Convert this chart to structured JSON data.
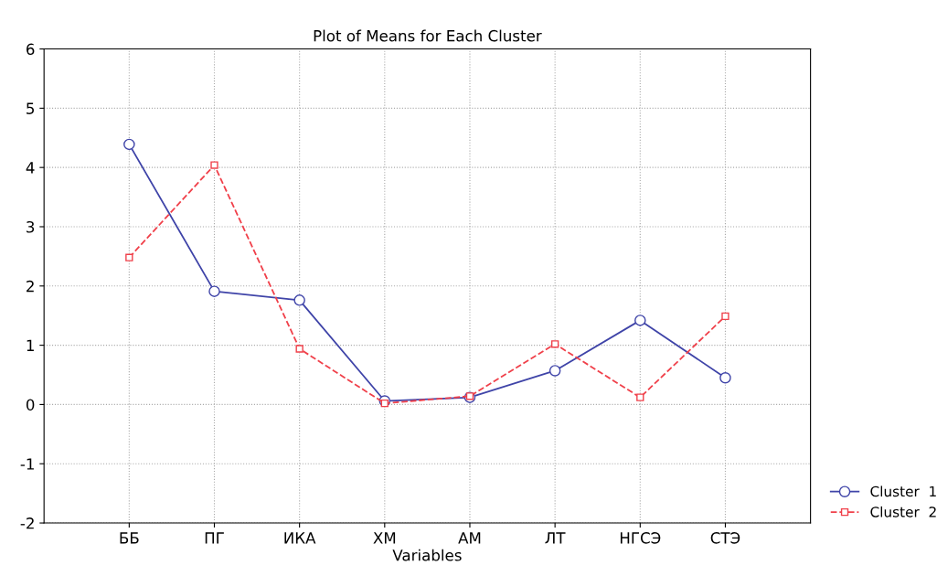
{
  "chart_data": {
    "type": "line",
    "title": "Plot of Means for Each Cluster",
    "xlabel": "Variables",
    "categories": [
      "ББ",
      "ПГ",
      "ИКА",
      "ХМ",
      "АМ",
      "ЛТ",
      "НГСЭ",
      "СТЭ"
    ],
    "series": [
      {
        "name": "Cluster  1",
        "color": "#3f44a8",
        "marker": "circle",
        "line_style": "solid",
        "values": [
          4.39,
          1.91,
          1.76,
          0.06,
          0.12,
          0.57,
          1.42,
          0.45
        ]
      },
      {
        "name": "Cluster  2",
        "color": "#f0404a",
        "marker": "square",
        "line_style": "dashed",
        "values": [
          2.48,
          4.04,
          0.94,
          0.02,
          0.14,
          1.02,
          0.12,
          1.49
        ]
      }
    ],
    "ylim": [
      -2,
      6
    ],
    "yticks": [
      -2,
      -1,
      0,
      1,
      2,
      3,
      4,
      5,
      6
    ],
    "grid": true,
    "legend": "bottom right"
  }
}
